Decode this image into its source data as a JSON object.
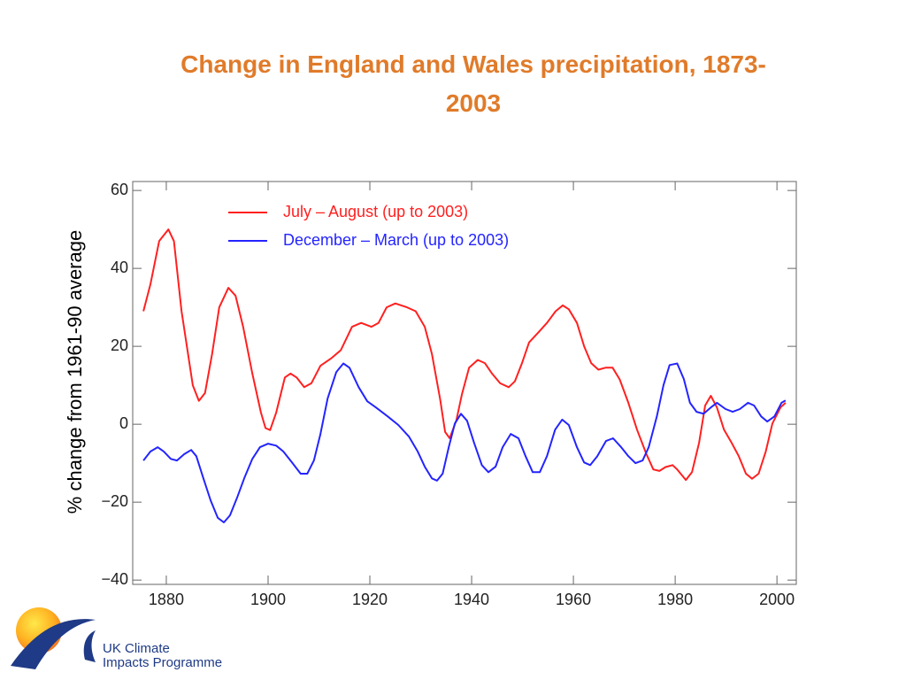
{
  "chart_data": {
    "type": "line",
    "title": "Change in England and Wales precipitation, 1873-2003",
    "ylabel": "% change from 1961-90 average",
    "xlim": [
      1873.4,
      2003.8
    ],
    "ylim": [
      -41.1,
      62.3
    ],
    "xticks": [
      1880,
      1900,
      1920,
      1940,
      1960,
      1980,
      2000
    ],
    "yticks": [
      {
        "value": -40,
        "label": "−40"
      },
      {
        "value": -20,
        "label": "−20"
      },
      0,
      20,
      40,
      60
    ],
    "series": [
      {
        "name": "July – August (up to 2003)",
        "color": "#ff2020",
        "x": [
          1875.5,
          1876.9,
          1878.6,
          1880.4,
          1881.5,
          1883,
          1885.2,
          1886.4,
          1887.6,
          1889,
          1890.4,
          1892.2,
          1893.6,
          1895.1,
          1896.9,
          1898.6,
          1899.5,
          1900.4,
          1901.6,
          1903.3,
          1904.4,
          1905.6,
          1907.1,
          1908.5,
          1910.3,
          1912.5,
          1914.3,
          1916.5,
          1918.3,
          1920.3,
          1921.7,
          1923.3,
          1925,
          1927.3,
          1929,
          1930.8,
          1932.2,
          1933.8,
          1934.8,
          1935.7,
          1937,
          1938.1,
          1939.5,
          1941.2,
          1942.6,
          1944,
          1945.6,
          1947.3,
          1948.5,
          1949.9,
          1951.3,
          1953,
          1954.8,
          1956.5,
          1957.9,
          1959.1,
          1960.7,
          1962.1,
          1963.5,
          1964.9,
          1966.3,
          1967.7,
          1969.1,
          1970.8,
          1972.5,
          1974.3,
          1975.7,
          1976.9,
          1978.1,
          1979.5,
          1980.4,
          1982.1,
          1983.3,
          1984.7,
          1985.9,
          1987,
          1988.2,
          1989.6,
          1991.1,
          1992.5,
          1993.9,
          1995.1,
          1996.4,
          1997.8,
          1999.1,
          2000.7,
          2001.7
        ],
        "values": [
          29,
          36,
          47,
          50,
          47,
          29,
          10,
          6,
          8,
          18,
          30,
          35,
          33,
          25,
          13,
          3,
          -1,
          -1.5,
          3,
          12,
          13,
          12,
          9.5,
          10.5,
          15,
          17,
          19,
          25,
          26,
          25,
          26,
          30,
          31,
          30,
          29,
          25,
          18,
          6.5,
          -2,
          -3.6,
          1,
          7.7,
          14.5,
          16.5,
          15.7,
          13,
          10.5,
          9.5,
          11,
          15.7,
          21,
          23.4,
          26,
          29,
          30.5,
          29.5,
          26,
          20,
          15.7,
          14,
          14.5,
          14.5,
          11.5,
          5.5,
          -1.4,
          -7.5,
          -11.6,
          -12,
          -11,
          -10.5,
          -11.6,
          -14.3,
          -12.3,
          -4.8,
          4.8,
          7.3,
          4.3,
          -1.4,
          -4.8,
          -8.2,
          -12.7,
          -14,
          -12.7,
          -7,
          0.2,
          4.3,
          5.5
        ]
      },
      {
        "name": "December – March (up to 2003)",
        "color": "#2424ff",
        "x": [
          1875.5,
          1876.9,
          1878.3,
          1879.5,
          1880.9,
          1882.1,
          1883.5,
          1884.9,
          1885.9,
          1887.3,
          1888.7,
          1890.1,
          1891.3,
          1892.5,
          1893.9,
          1895.3,
          1896.9,
          1898.4,
          1900,
          1901.6,
          1903,
          1904.7,
          1906.4,
          1907.7,
          1909,
          1910.3,
          1911.7,
          1913.4,
          1914.8,
          1916,
          1917.8,
          1919.5,
          1921.2,
          1923.5,
          1925.6,
          1927.7,
          1929.4,
          1930.8,
          1932.2,
          1933.2,
          1934.3,
          1935.5,
          1936.7,
          1937.9,
          1939.1,
          1940.5,
          1942,
          1943.3,
          1944.7,
          1946.1,
          1947.7,
          1949.2,
          1950.6,
          1952,
          1953.4,
          1954.8,
          1956.4,
          1957.8,
          1959.1,
          1960.7,
          1962.1,
          1963.3,
          1964.7,
          1966.4,
          1967.8,
          1969.4,
          1970.8,
          1972.2,
          1973.6,
          1974.8,
          1976.4,
          1977.7,
          1978.9,
          1980.4,
          1981.7,
          1982.9,
          1984.2,
          1985.6,
          1987,
          1988.2,
          1989.9,
          1991.3,
          1992.7,
          1994.3,
          1995.5,
          1996.9,
          1998.1,
          1999.5,
          2000.9,
          2001.7
        ],
        "values": [
          -9.3,
          -7,
          -5.9,
          -7,
          -8.9,
          -9.3,
          -7.7,
          -6.6,
          -8.2,
          -13.9,
          -19.5,
          -24,
          -25.2,
          -23.4,
          -18.9,
          -13.9,
          -8.9,
          -5.9,
          -5,
          -5.5,
          -7,
          -9.8,
          -12.7,
          -12.7,
          -9.3,
          -2.5,
          6.6,
          13.4,
          15.6,
          14.5,
          9.5,
          5.9,
          4.3,
          2,
          -0.2,
          -3.2,
          -7,
          -10.9,
          -13.9,
          -14.5,
          -12.7,
          -5.9,
          0.2,
          2.7,
          0.9,
          -4.8,
          -10.5,
          -12.3,
          -10.9,
          -5.9,
          -2.5,
          -3.6,
          -8.2,
          -12.3,
          -12.3,
          -8.2,
          -1.4,
          1.2,
          -0.2,
          -5.9,
          -9.8,
          -10.5,
          -8.2,
          -4.3,
          -3.6,
          -5.9,
          -8.2,
          -10,
          -9.3,
          -5.9,
          2,
          10,
          15.2,
          15.6,
          11.6,
          5.5,
          3.2,
          2.7,
          4.3,
          5.5,
          3.9,
          3.2,
          3.9,
          5.5,
          4.8,
          2,
          0.7,
          2,
          5.5,
          6.1
        ]
      }
    ]
  },
  "logo": {
    "line1": "UK Climate",
    "line2": "Impacts Programme"
  }
}
